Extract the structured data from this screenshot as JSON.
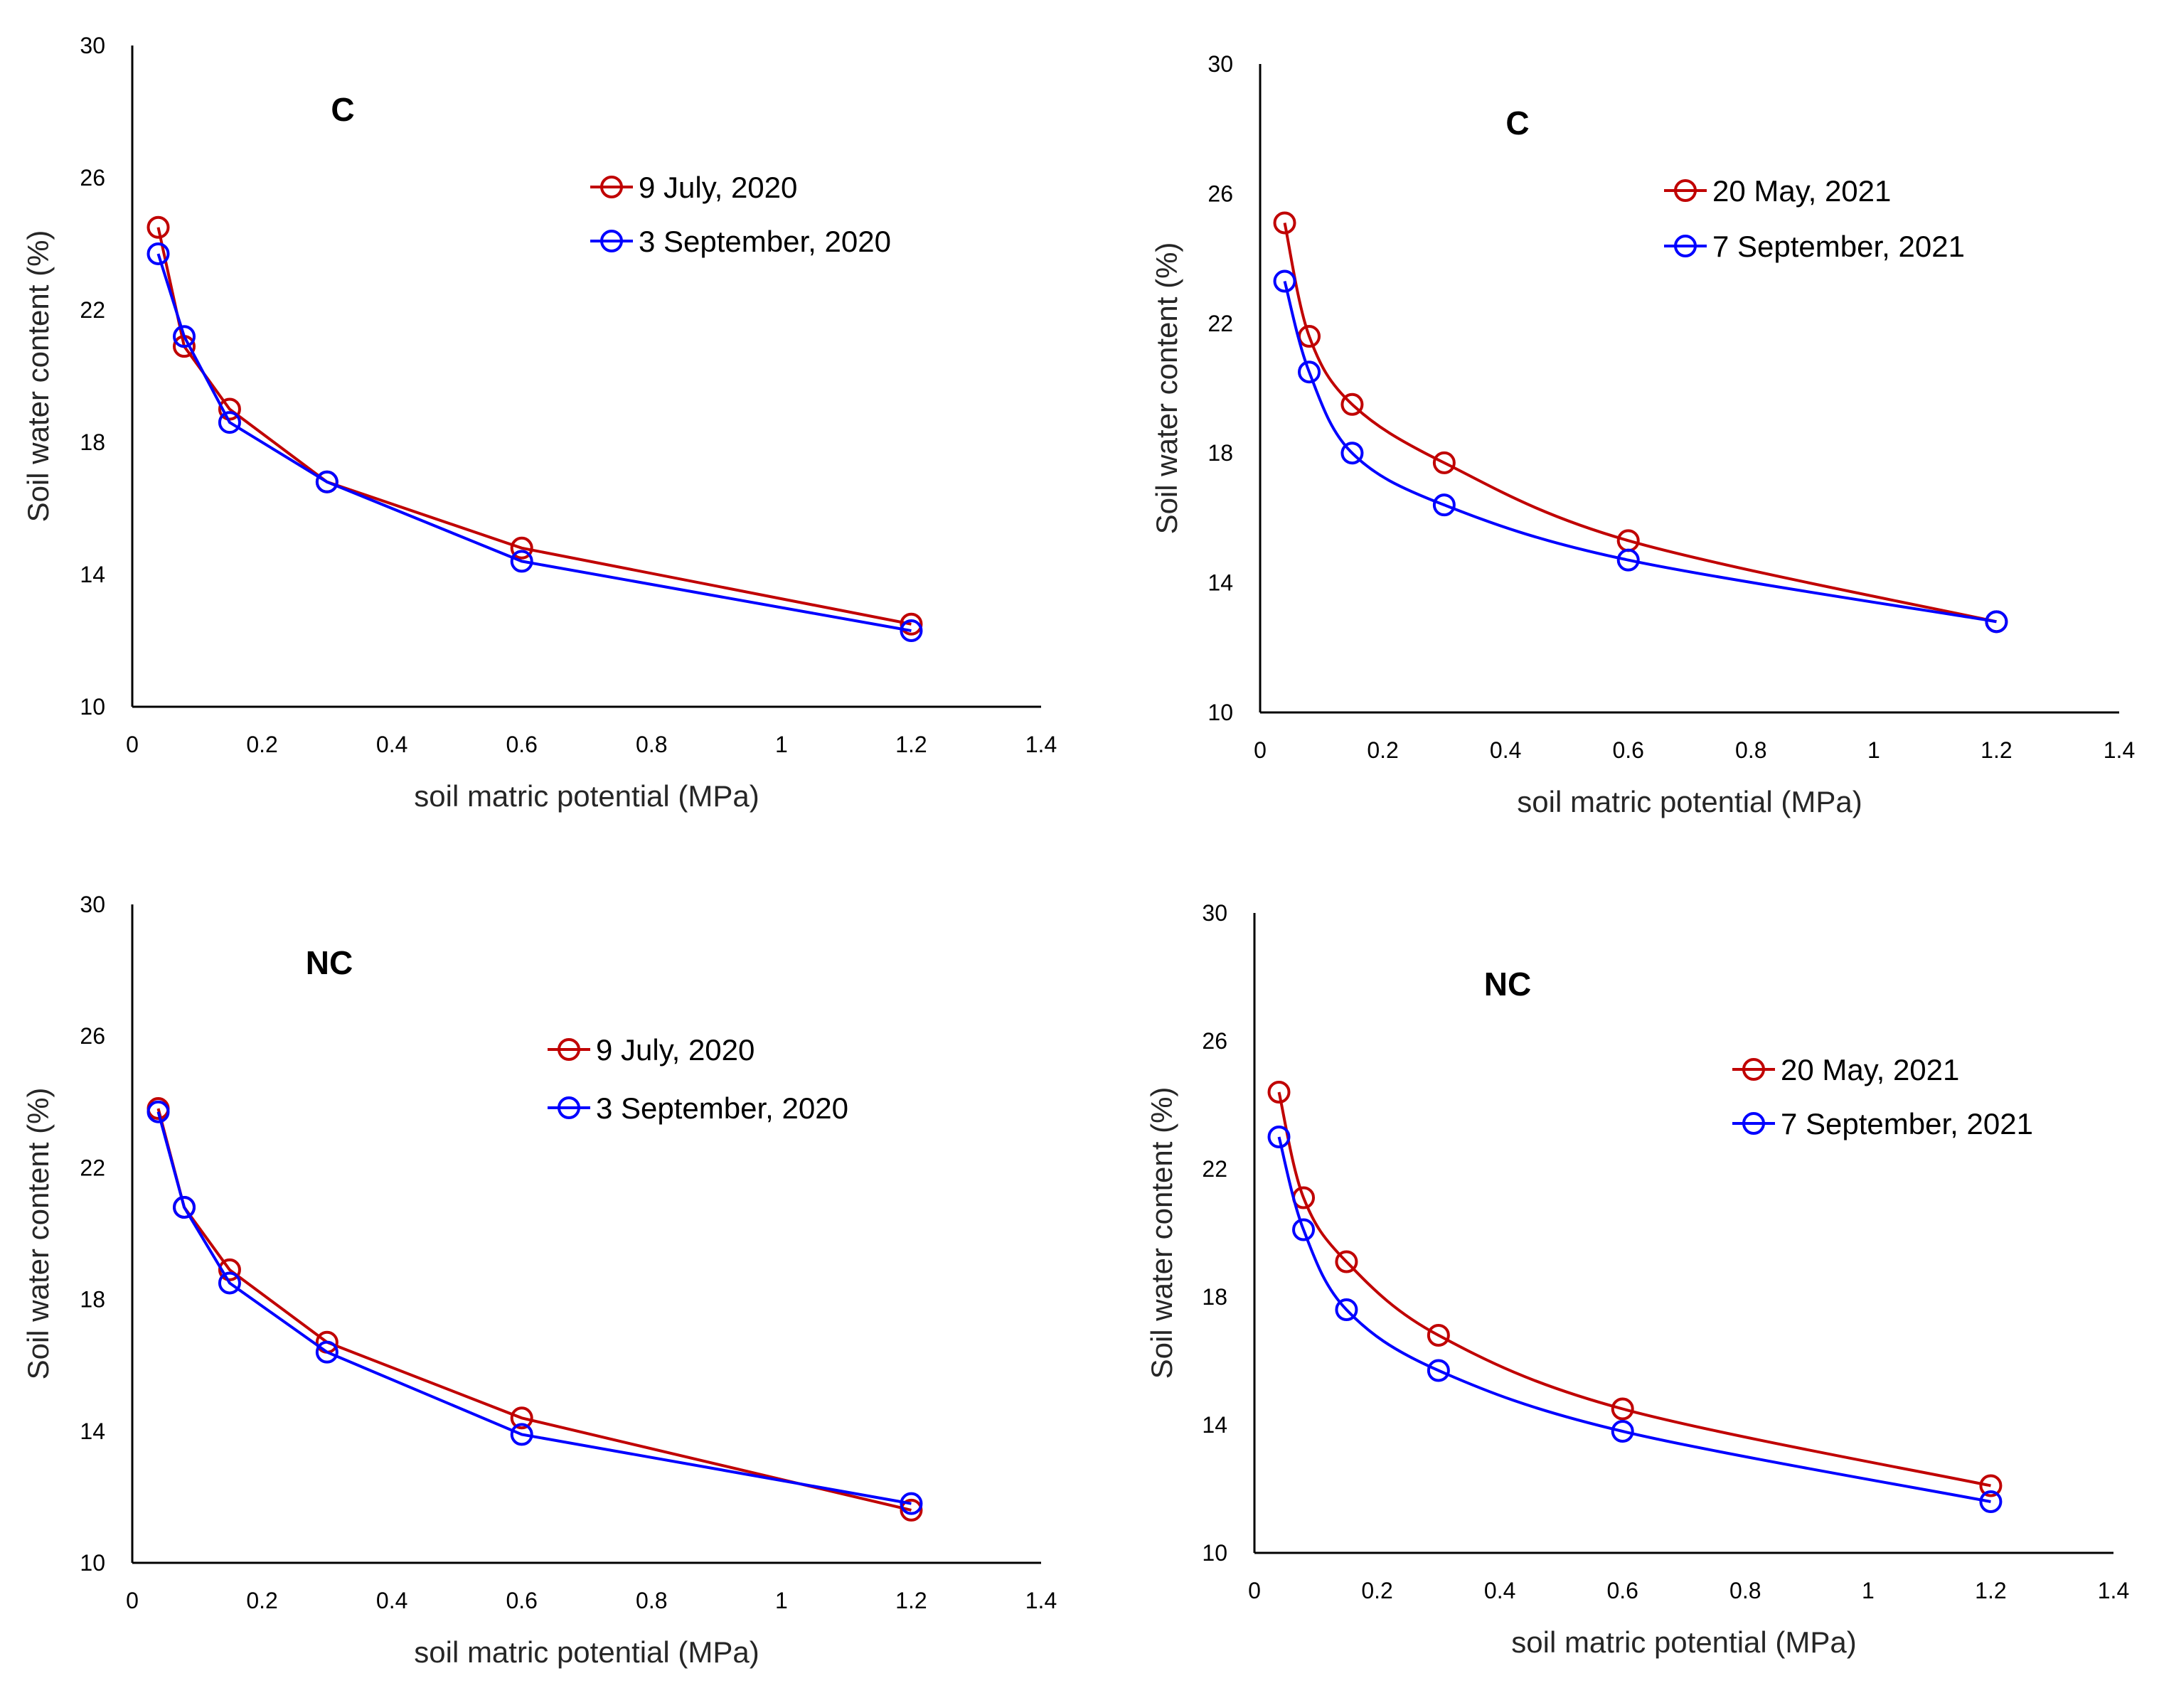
{
  "colors": {
    "red": "#C00000",
    "blue": "#0000FF"
  },
  "chart_data": [
    {
      "type": "line",
      "title": "C",
      "xlabel": "soil matric potential (MPa)",
      "ylabel": "Soil water content (%)",
      "xlim": [
        0,
        1.4
      ],
      "ylim": [
        10,
        30
      ],
      "xticks": [
        0,
        0.2,
        0.4,
        0.6,
        0.8,
        1,
        1.2,
        1.4
      ],
      "xtick_labels": [
        "0",
        "0.2",
        "0.4",
        "0.6",
        "0.8",
        "1",
        "1.2",
        "1.4"
      ],
      "yticks": [
        10,
        14,
        18,
        22,
        26,
        30
      ],
      "ytick_labels": [
        "10",
        "14",
        "18",
        "22",
        "26",
        "30"
      ],
      "smooth": false,
      "legend_position": "top-right",
      "x": [
        0.04,
        0.08,
        0.15,
        0.3,
        0.6,
        1.2
      ],
      "series": [
        {
          "name": "9 July, 2020",
          "color": "#C00000",
          "values": [
            24.5,
            20.9,
            19.0,
            16.8,
            14.8,
            12.5
          ]
        },
        {
          "name": "3 September, 2020",
          "color": "#0000FF",
          "values": [
            23.7,
            21.2,
            18.6,
            16.8,
            14.4,
            12.3
          ]
        }
      ]
    },
    {
      "type": "line",
      "title": "C",
      "xlabel": "soil matric potential (MPa)",
      "ylabel": "Soil water content (%)",
      "xlim": [
        0,
        1.4
      ],
      "ylim": [
        10,
        30
      ],
      "xticks": [
        0,
        0.2,
        0.4,
        0.6,
        0.8,
        1,
        1.2,
        1.4
      ],
      "xtick_labels": [
        "0",
        "0.2",
        "0.4",
        "0.6",
        "0.8",
        "1",
        "1.2",
        "1.4"
      ],
      "yticks": [
        10,
        14,
        18,
        22,
        26,
        30
      ],
      "ytick_labels": [
        "10",
        "14",
        "18",
        "22",
        "26",
        "30"
      ],
      "smooth": true,
      "legend_position": "top-right",
      "x": [
        0.04,
        0.08,
        0.15,
        0.3,
        0.6,
        1.2
      ],
      "series": [
        {
          "name": "20 May, 2021",
          "color": "#C00000",
          "values": [
            25.1,
            21.6,
            19.5,
            17.7,
            15.3,
            12.8
          ]
        },
        {
          "name": "7 September, 2021",
          "color": "#0000FF",
          "values": [
            23.3,
            20.5,
            18.0,
            16.4,
            14.7,
            12.8
          ]
        }
      ]
    },
    {
      "type": "line",
      "title": "NC",
      "xlabel": "soil matric potential (MPa)",
      "ylabel": "Soil water content (%)",
      "xlim": [
        0,
        1.4
      ],
      "ylim": [
        10,
        30
      ],
      "xticks": [
        0,
        0.2,
        0.4,
        0.6,
        0.8,
        1,
        1.2,
        1.4
      ],
      "xtick_labels": [
        "0",
        "0.2",
        "0.4",
        "0.6",
        "0.8",
        "1",
        "1.2",
        "1.4"
      ],
      "yticks": [
        10,
        14,
        18,
        22,
        26,
        30
      ],
      "ytick_labels": [
        "10",
        "14",
        "18",
        "22",
        "26",
        "30"
      ],
      "smooth": false,
      "legend_position": "top-right",
      "x": [
        0.04,
        0.08,
        0.15,
        0.3,
        0.6,
        1.2
      ],
      "series": [
        {
          "name": "9 July, 2020",
          "color": "#C00000",
          "values": [
            23.8,
            20.8,
            18.9,
            16.7,
            14.4,
            11.6
          ]
        },
        {
          "name": "3 September, 2020",
          "color": "#0000FF",
          "values": [
            23.7,
            20.8,
            18.5,
            16.4,
            13.9,
            11.8
          ]
        }
      ]
    },
    {
      "type": "line",
      "title": "NC",
      "xlabel": "soil matric potential (MPa)",
      "ylabel": "Soil water content (%)",
      "xlim": [
        0,
        1.4
      ],
      "ylim": [
        10,
        30
      ],
      "xticks": [
        0,
        0.2,
        0.4,
        0.6,
        0.8,
        1,
        1.2,
        1.4
      ],
      "xtick_labels": [
        "0",
        "0.2",
        "0.4",
        "0.6",
        "0.8",
        "1",
        "1.2",
        "1.4"
      ],
      "yticks": [
        10,
        14,
        18,
        22,
        26,
        30
      ],
      "ytick_labels": [
        "10",
        "14",
        "18",
        "22",
        "26",
        "30"
      ],
      "smooth": true,
      "legend_position": "top-right",
      "x": [
        0.04,
        0.08,
        0.15,
        0.3,
        0.6,
        1.2
      ],
      "series": [
        {
          "name": "20 May, 2021",
          "color": "#C00000",
          "values": [
            24.4,
            21.1,
            19.1,
            16.8,
            14.5,
            12.1
          ]
        },
        {
          "name": "7 September, 2021",
          "color": "#0000FF",
          "values": [
            23.0,
            20.1,
            17.6,
            15.7,
            13.8,
            11.6
          ]
        }
      ]
    }
  ]
}
